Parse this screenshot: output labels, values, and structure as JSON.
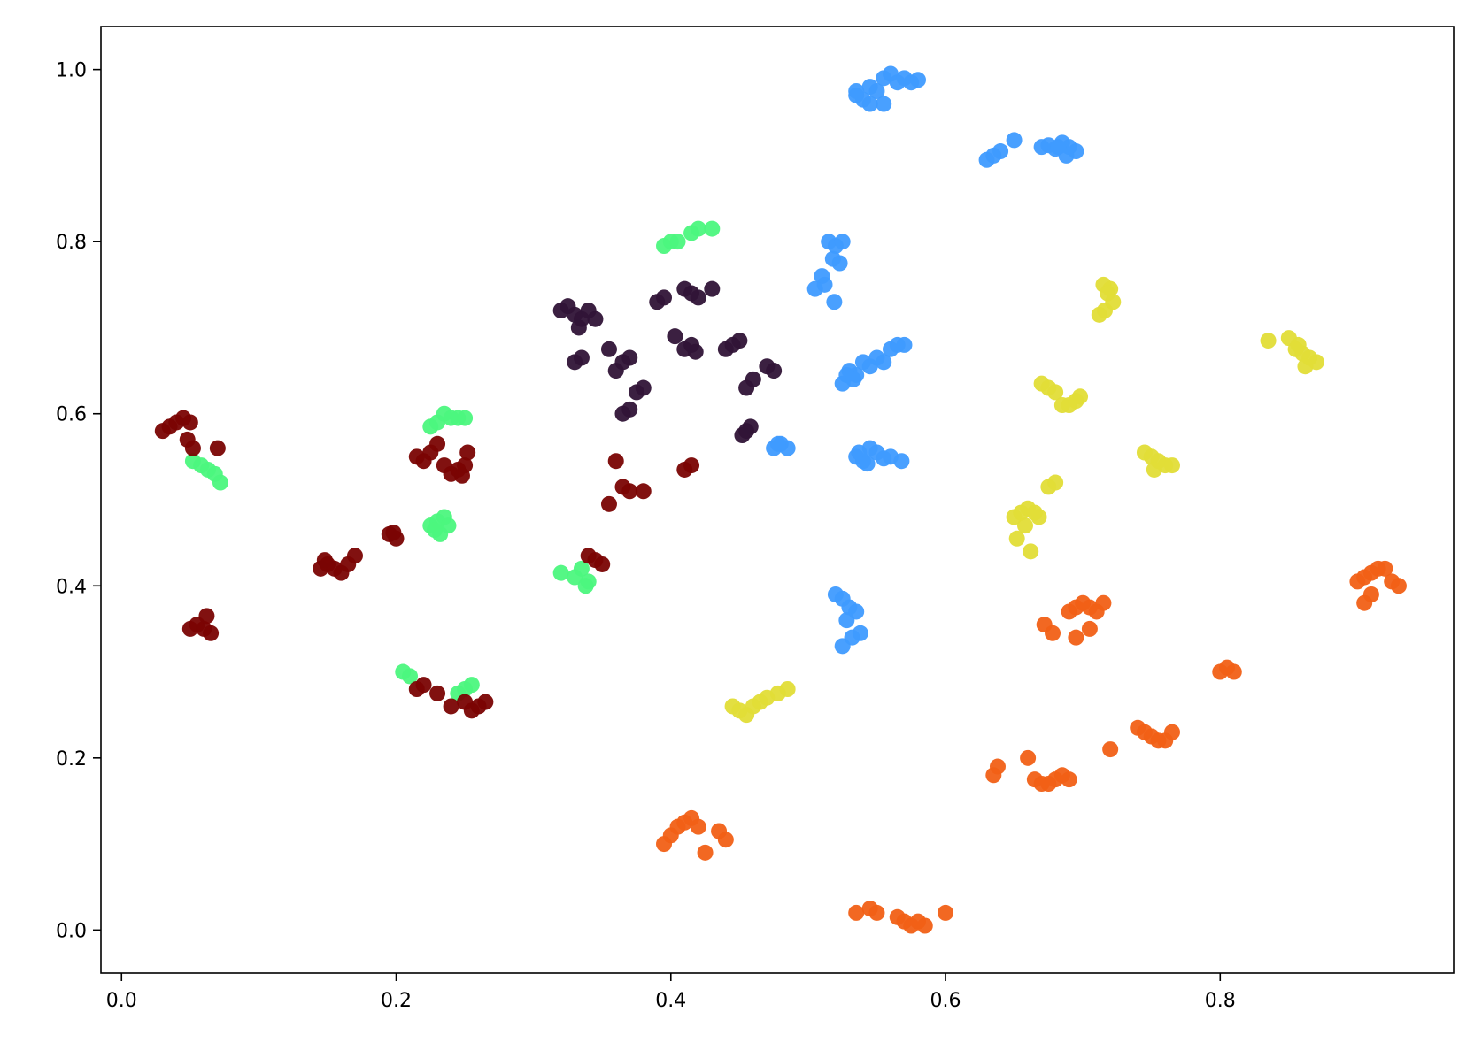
{
  "chart_data": {
    "type": "scatter",
    "title": "",
    "xlabel": "",
    "ylabel": "",
    "xlim": [
      -0.015,
      0.97
    ],
    "ylim": [
      -0.05,
      1.05
    ],
    "xticks": [
      0.0,
      0.2,
      0.4,
      0.6,
      0.8
    ],
    "xtick_labels": [
      "0.0",
      "0.2",
      "0.4",
      "0.6",
      "0.8"
    ],
    "yticks": [
      0.0,
      0.2,
      0.4,
      0.6,
      0.8,
      1.0
    ],
    "ytick_labels": [
      "0.0",
      "0.2",
      "0.4",
      "0.6",
      "0.8",
      "1.0"
    ],
    "grid": false,
    "legend": "none",
    "series": [
      {
        "color": "#3f9bff",
        "x": [
          0.535,
          0.54,
          0.545,
          0.55,
          0.555,
          0.56,
          0.565,
          0.57,
          0.575,
          0.58,
          0.545,
          0.555,
          0.535,
          0.63,
          0.635,
          0.64,
          0.65,
          0.67,
          0.675,
          0.68,
          0.685,
          0.69,
          0.695,
          0.688,
          0.682,
          0.515,
          0.52,
          0.525,
          0.518,
          0.523,
          0.51,
          0.512,
          0.505,
          0.519,
          0.525,
          0.53,
          0.535,
          0.54,
          0.545,
          0.55,
          0.555,
          0.56,
          0.565,
          0.57,
          0.528,
          0.533,
          0.535,
          0.54,
          0.545,
          0.55,
          0.555,
          0.56,
          0.568,
          0.537,
          0.543,
          0.475,
          0.48,
          0.485,
          0.478,
          0.52,
          0.525,
          0.53,
          0.535,
          0.528,
          0.538,
          0.532,
          0.525
        ],
        "y": [
          0.97,
          0.965,
          0.98,
          0.975,
          0.99,
          0.995,
          0.985,
          0.99,
          0.985,
          0.988,
          0.96,
          0.96,
          0.975,
          0.895,
          0.9,
          0.905,
          0.918,
          0.91,
          0.912,
          0.908,
          0.915,
          0.91,
          0.905,
          0.9,
          0.91,
          0.8,
          0.795,
          0.8,
          0.78,
          0.775,
          0.76,
          0.75,
          0.745,
          0.73,
          0.635,
          0.65,
          0.645,
          0.66,
          0.655,
          0.665,
          0.66,
          0.675,
          0.68,
          0.68,
          0.645,
          0.64,
          0.55,
          0.545,
          0.56,
          0.555,
          0.548,
          0.55,
          0.545,
          0.555,
          0.542,
          0.56,
          0.565,
          0.56,
          0.565,
          0.39,
          0.385,
          0.375,
          0.37,
          0.36,
          0.345,
          0.34,
          0.33
        ]
      },
      {
        "color": "#e1dd37",
        "x": [
          0.715,
          0.72,
          0.718,
          0.722,
          0.712,
          0.716,
          0.835,
          0.85,
          0.855,
          0.86,
          0.865,
          0.87,
          0.862,
          0.857,
          0.67,
          0.675,
          0.68,
          0.685,
          0.69,
          0.695,
          0.698,
          0.745,
          0.75,
          0.755,
          0.76,
          0.765,
          0.752,
          0.65,
          0.655,
          0.66,
          0.665,
          0.668,
          0.658,
          0.652,
          0.662,
          0.675,
          0.68,
          0.445,
          0.45,
          0.455,
          0.46,
          0.465,
          0.47,
          0.478,
          0.485
        ],
        "y": [
          0.75,
          0.745,
          0.74,
          0.73,
          0.715,
          0.72,
          0.685,
          0.688,
          0.675,
          0.67,
          0.665,
          0.66,
          0.655,
          0.68,
          0.635,
          0.63,
          0.625,
          0.61,
          0.61,
          0.615,
          0.62,
          0.555,
          0.55,
          0.545,
          0.54,
          0.54,
          0.535,
          0.48,
          0.485,
          0.49,
          0.485,
          0.48,
          0.47,
          0.455,
          0.44,
          0.515,
          0.52,
          0.26,
          0.255,
          0.25,
          0.26,
          0.265,
          0.27,
          0.275,
          0.28
        ]
      },
      {
        "color": "#f16016",
        "x": [
          0.9,
          0.905,
          0.91,
          0.915,
          0.92,
          0.925,
          0.91,
          0.905,
          0.93,
          0.69,
          0.695,
          0.7,
          0.705,
          0.71,
          0.715,
          0.672,
          0.678,
          0.695,
          0.705,
          0.8,
          0.805,
          0.81,
          0.74,
          0.745,
          0.75,
          0.755,
          0.76,
          0.765,
          0.72,
          0.635,
          0.638,
          0.66,
          0.665,
          0.67,
          0.675,
          0.68,
          0.685,
          0.69,
          0.395,
          0.4,
          0.405,
          0.41,
          0.415,
          0.42,
          0.425,
          0.435,
          0.44,
          0.535,
          0.545,
          0.55,
          0.565,
          0.57,
          0.575,
          0.58,
          0.585,
          0.6
        ],
        "y": [
          0.405,
          0.41,
          0.415,
          0.42,
          0.42,
          0.405,
          0.39,
          0.38,
          0.4,
          0.37,
          0.375,
          0.38,
          0.375,
          0.37,
          0.38,
          0.355,
          0.345,
          0.34,
          0.35,
          0.3,
          0.305,
          0.3,
          0.235,
          0.23,
          0.225,
          0.22,
          0.22,
          0.23,
          0.21,
          0.18,
          0.19,
          0.2,
          0.175,
          0.17,
          0.17,
          0.175,
          0.18,
          0.175,
          0.1,
          0.11,
          0.12,
          0.125,
          0.13,
          0.12,
          0.09,
          0.115,
          0.105,
          0.02,
          0.025,
          0.02,
          0.015,
          0.01,
          0.005,
          0.01,
          0.005,
          0.02
        ],
        "note_color": "#f16016"
      },
      {
        "color": "#4cf77e",
        "x": [
          0.395,
          0.4,
          0.405,
          0.415,
          0.42,
          0.43,
          0.225,
          0.23,
          0.235,
          0.24,
          0.245,
          0.25,
          0.052,
          0.058,
          0.063,
          0.068,
          0.072,
          0.225,
          0.23,
          0.235,
          0.238,
          0.232,
          0.228,
          0.32,
          0.33,
          0.335,
          0.34,
          0.338,
          0.205,
          0.21,
          0.245,
          0.25,
          0.255
        ],
        "y": [
          0.795,
          0.8,
          0.8,
          0.81,
          0.815,
          0.815,
          0.585,
          0.59,
          0.6,
          0.595,
          0.595,
          0.595,
          0.545,
          0.54,
          0.535,
          0.53,
          0.52,
          0.47,
          0.475,
          0.48,
          0.47,
          0.46,
          0.465,
          0.415,
          0.41,
          0.42,
          0.405,
          0.4,
          0.3,
          0.295,
          0.275,
          0.28,
          0.285
        ]
      },
      {
        "color": "#301437",
        "x": [
          0.32,
          0.325,
          0.33,
          0.335,
          0.34,
          0.345,
          0.333,
          0.39,
          0.395,
          0.41,
          0.415,
          0.42,
          0.43,
          0.403,
          0.33,
          0.335,
          0.355,
          0.36,
          0.365,
          0.37,
          0.41,
          0.415,
          0.418,
          0.44,
          0.445,
          0.45,
          0.455,
          0.46,
          0.47,
          0.475,
          0.375,
          0.38,
          0.37,
          0.365,
          0.455,
          0.458,
          0.452
        ],
        "y": [
          0.72,
          0.725,
          0.715,
          0.71,
          0.72,
          0.71,
          0.7,
          0.73,
          0.735,
          0.745,
          0.74,
          0.735,
          0.745,
          0.69,
          0.66,
          0.665,
          0.675,
          0.65,
          0.66,
          0.665,
          0.675,
          0.68,
          0.672,
          0.675,
          0.68,
          0.685,
          0.63,
          0.64,
          0.655,
          0.65,
          0.625,
          0.63,
          0.605,
          0.6,
          0.58,
          0.585,
          0.575
        ]
      },
      {
        "color": "#7a0403",
        "x": [
          0.03,
          0.035,
          0.04,
          0.045,
          0.05,
          0.048,
          0.052,
          0.07,
          0.215,
          0.22,
          0.225,
          0.23,
          0.235,
          0.24,
          0.245,
          0.25,
          0.252,
          0.248,
          0.195,
          0.2,
          0.198,
          0.145,
          0.15,
          0.155,
          0.16,
          0.165,
          0.17,
          0.148,
          0.05,
          0.055,
          0.06,
          0.065,
          0.062,
          0.215,
          0.22,
          0.23,
          0.24,
          0.25,
          0.255,
          0.26,
          0.265,
          0.34,
          0.345,
          0.35,
          0.355,
          0.36,
          0.365,
          0.37,
          0.38,
          0.41,
          0.415
        ],
        "y": [
          0.58,
          0.585,
          0.59,
          0.595,
          0.59,
          0.57,
          0.56,
          0.56,
          0.55,
          0.545,
          0.555,
          0.565,
          0.54,
          0.53,
          0.535,
          0.54,
          0.555,
          0.528,
          0.46,
          0.455,
          0.462,
          0.42,
          0.425,
          0.42,
          0.415,
          0.425,
          0.435,
          0.43,
          0.35,
          0.355,
          0.35,
          0.345,
          0.365,
          0.28,
          0.285,
          0.275,
          0.26,
          0.265,
          0.255,
          0.26,
          0.265,
          0.435,
          0.43,
          0.425,
          0.495,
          0.545,
          0.515,
          0.51,
          0.51,
          0.535,
          0.54
        ]
      }
    ]
  }
}
